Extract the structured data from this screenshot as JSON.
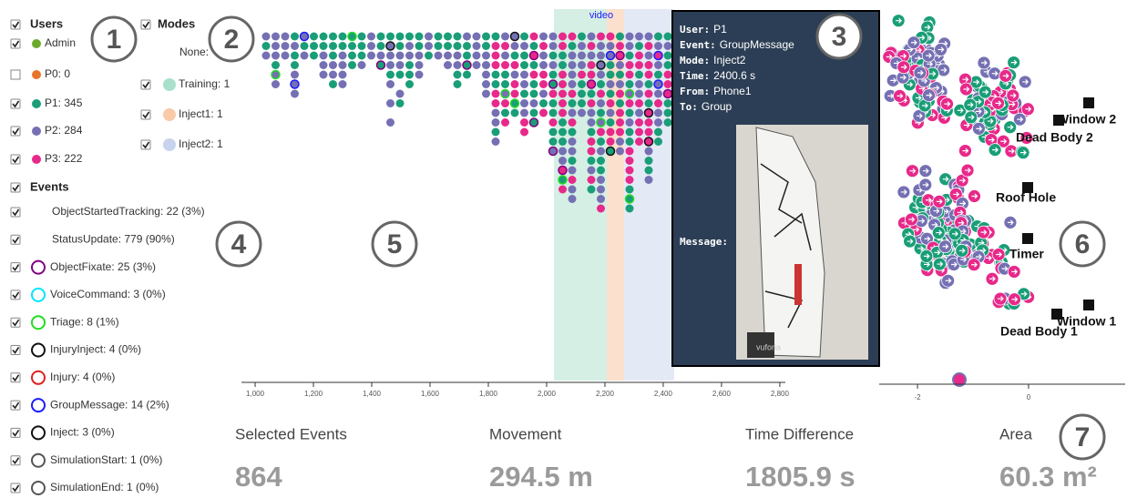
{
  "markers": [
    "1",
    "2",
    "3",
    "4",
    "5",
    "6",
    "7"
  ],
  "users": {
    "title": "Users",
    "items": [
      "Admin",
      "P0: 0",
      "P1: 345",
      "P2: 284",
      "P3: 222"
    ]
  },
  "events": {
    "title": "Events",
    "items": [
      "ObjectStartedTracking: 22 (3%)",
      "StatusUpdate: 779 (90%)",
      "ObjectFixate: 25 (3%)",
      "VoiceCommand: 3 (0%)",
      "Triage: 8 (1%)",
      "InjuryInject: 4 (0%)",
      "Injury: 4 (0%)",
      "GroupMessage: 14 (2%)",
      "Inject: 3 (0%)",
      "SimulationStart: 1 (0%)",
      "SimulationEnd: 1 (0%)"
    ]
  },
  "modes": {
    "title": "Modes",
    "items": [
      "None:",
      "Training: 1",
      "Inject1: 1",
      "Inject2: 1"
    ]
  },
  "timeline": {
    "video_label": "video",
    "xlim": [
      953,
      2819
    ],
    "xticks": [
      {
        "value": 1000,
        "label": "1,000"
      },
      {
        "value": 1200,
        "label": "1,200"
      },
      {
        "value": 1400,
        "label": "1,400"
      },
      {
        "value": 1600,
        "label": "1,600"
      },
      {
        "value": 1800,
        "label": "1,800"
      },
      {
        "value": 2000,
        "label": "2,000"
      },
      {
        "value": 2200,
        "label": "2,200"
      },
      {
        "value": 2400,
        "label": "2,400"
      },
      {
        "value": 2600,
        "label": "2,600"
      },
      {
        "value": 2800,
        "label": "2,800"
      }
    ]
  },
  "tooltip": {
    "rows": [
      [
        "User:",
        "P1"
      ],
      [
        "Event:",
        "GroupMessage"
      ],
      [
        "Mode:",
        "Inject2"
      ],
      [
        "Time:",
        "2400.6 s"
      ],
      [
        "From:",
        "Phone1"
      ],
      [
        "To:",
        "Group"
      ]
    ],
    "message_label": "Message:",
    "image_text": "vuforia"
  },
  "map": {
    "labels": [
      "Window 2",
      "Dead Body 2",
      "Roof Hole",
      "Timer",
      "Window 1",
      "Dead Body 1"
    ],
    "xlim": [
      -2.69,
      1.74
    ],
    "xticks": [
      -2,
      0
    ]
  },
  "stats": [
    {
      "title": "Selected Events",
      "value": "864"
    },
    {
      "title": "Movement",
      "value": "294.5 m"
    },
    {
      "title": "Time Difference",
      "value": "1805.9 s"
    },
    {
      "title": "Area",
      "value": "60.3 m²"
    }
  ]
}
